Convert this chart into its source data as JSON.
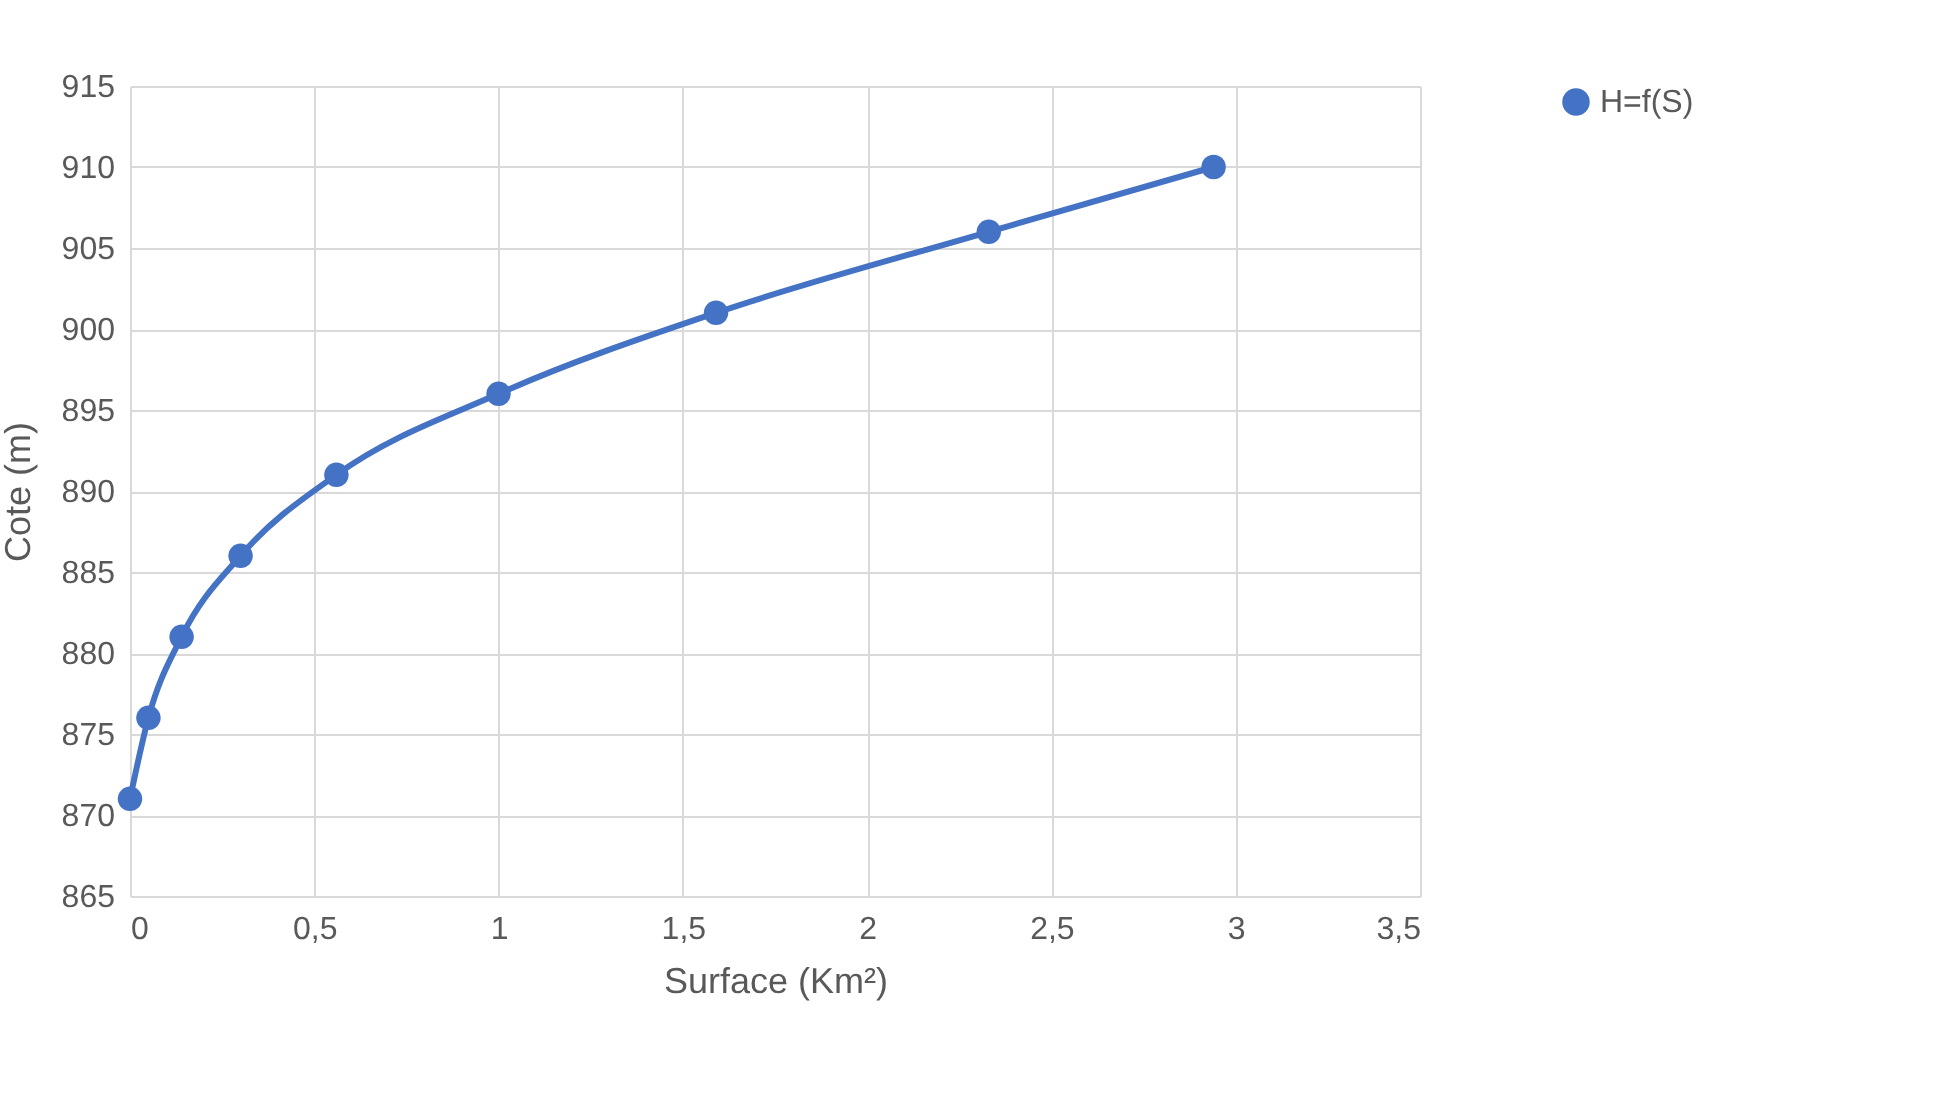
{
  "chart_data": {
    "type": "line",
    "xlabel": "Surface (Km²)",
    "ylabel": "Cote (m)",
    "x": [
      0,
      0.05,
      0.14,
      0.3,
      0.56,
      1.0,
      1.59,
      2.33,
      2.94
    ],
    "series": [
      {
        "name": "H=f(S)",
        "color": "#4472c4",
        "values": [
          871,
          876,
          881,
          886,
          891,
          896,
          901,
          906,
          910
        ]
      }
    ],
    "xlim": [
      0,
      3.5
    ],
    "xticks": [
      0,
      {
        "value": 0.5,
        "label": "0,5"
      },
      1,
      {
        "value": 1.5,
        "label": "1,5"
      },
      2,
      {
        "value": 2.5,
        "label": "2,5"
      },
      3,
      {
        "value": 3.5,
        "label": "3,5"
      }
    ],
    "ylim": [
      865,
      915
    ],
    "yticks": [
      865,
      870,
      875,
      880,
      885,
      890,
      895,
      900,
      905,
      910,
      915
    ],
    "grid": true,
    "legend": "right",
    "marker": "circle",
    "line_style": "solid"
  }
}
